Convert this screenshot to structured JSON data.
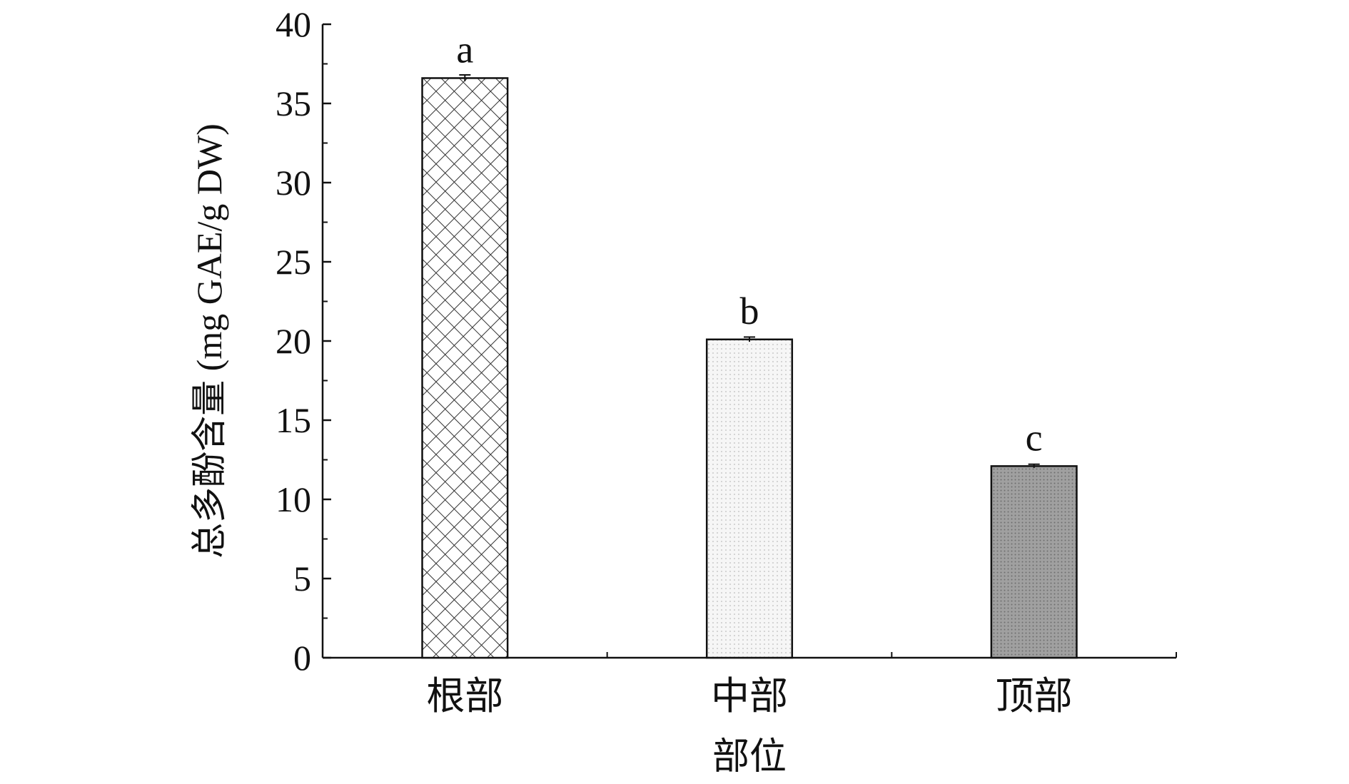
{
  "chart_data": {
    "type": "bar",
    "xlabel": "部位",
    "ylabel": "总多酚含量 (mg GAE/g DW)",
    "categories": [
      "根部",
      "中部",
      "顶部"
    ],
    "values": [
      36.6,
      20.1,
      12.1
    ],
    "errors": [
      0.2,
      0.15,
      0.12
    ],
    "significance_letters": [
      "a",
      "b",
      "c"
    ],
    "ylim": [
      0,
      40
    ],
    "yticks": [
      "0",
      "5",
      "10",
      "15",
      "20",
      "25",
      "30",
      "35",
      "40"
    ],
    "fills": [
      "crosshatch",
      "light-dots",
      "dark-dots"
    ],
    "grid": false,
    "legend": "none"
  }
}
